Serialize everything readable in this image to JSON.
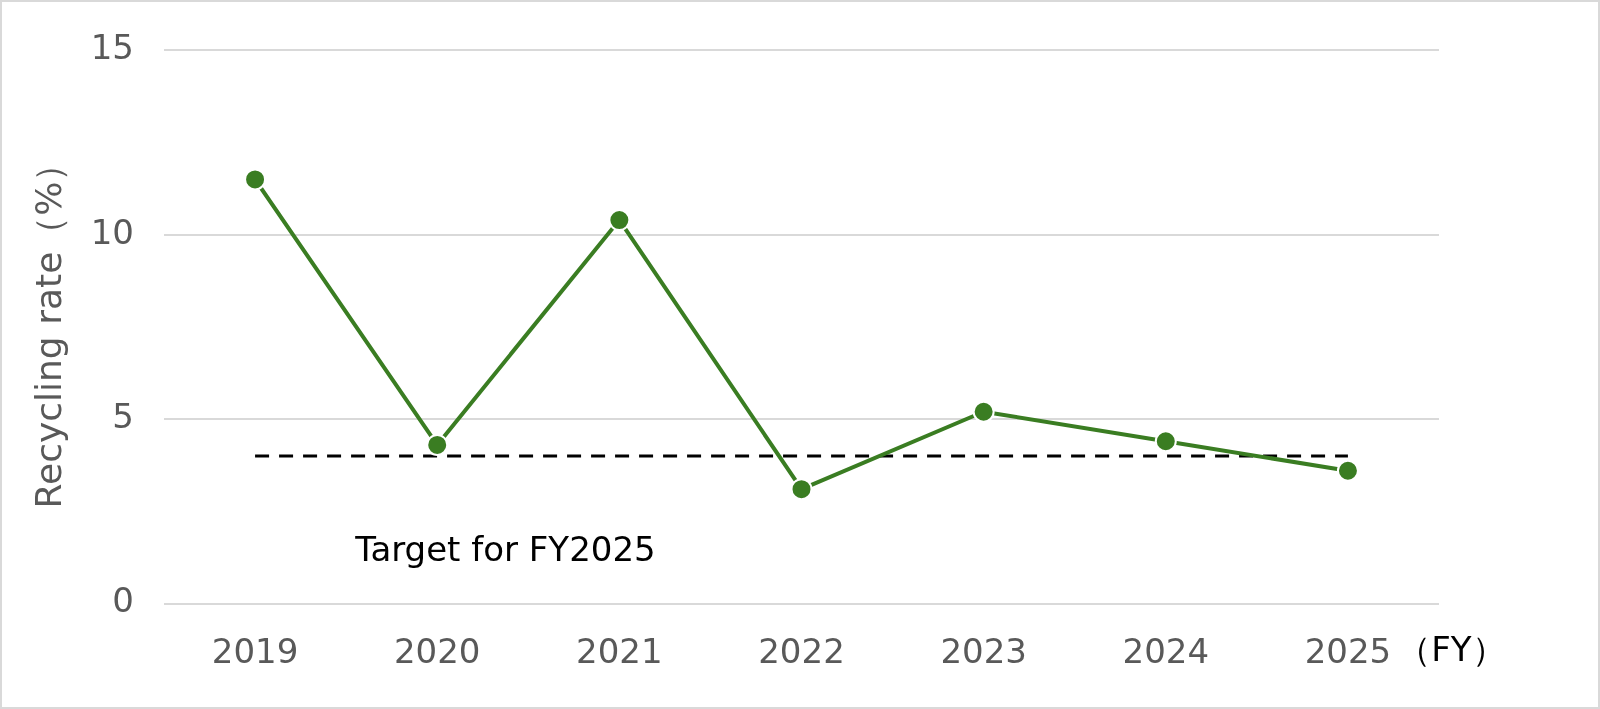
{
  "chart_data": {
    "type": "line",
    "categories": [
      "2019",
      "2020",
      "2021",
      "2022",
      "2023",
      "2024",
      "2025"
    ],
    "values": [
      11.5,
      4.3,
      10.4,
      3.1,
      5.2,
      4.4,
      3.6
    ],
    "color": "#3a7d22",
    "ylabel": "Recycling rate（%）",
    "xlabel": "（FY）",
    "ylim": [
      0,
      15
    ],
    "yticks": [
      0,
      5,
      10,
      15
    ],
    "grid": "y",
    "marker": "circle",
    "ref_lines": [
      {
        "axis": "y",
        "value": 4,
        "label": "Target for FY2025",
        "color": "#000000",
        "line_style": "dashed"
      }
    ]
  }
}
